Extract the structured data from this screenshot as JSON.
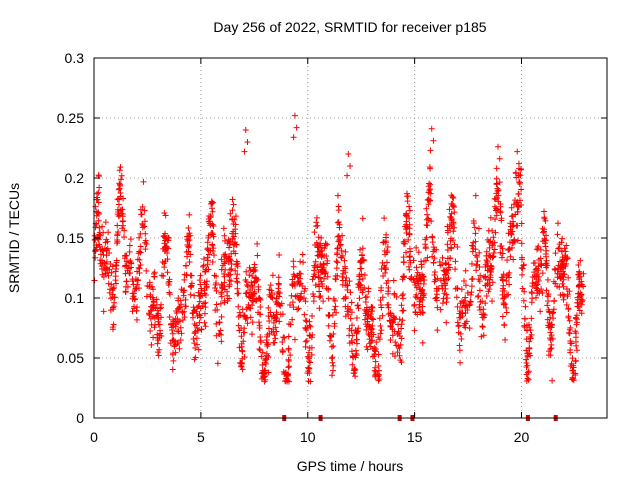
{
  "chart_data": {
    "type": "scatter",
    "title": "Day 256 of 2022, SRMTID for receiver p185",
    "xlabel": "GPS time / hours",
    "ylabel": "SRMTID / TECUs",
    "xlim": [
      0,
      24
    ],
    "ylim": [
      0,
      0.3
    ],
    "xticks": [
      0,
      5,
      10,
      15,
      20
    ],
    "xtick_labels": [
      "0",
      "5",
      "10",
      "15",
      "20"
    ],
    "yticks": [
      0,
      0.05,
      0.1,
      0.15,
      0.2,
      0.25,
      0.3
    ],
    "ytick_labels": [
      "0",
      "0.05",
      "0.1",
      "0.15",
      "0.2",
      "0.25",
      "0.3"
    ],
    "grid": true,
    "marker": "plus",
    "series_color": "#ff0000",
    "gap_markers_x": [
      8.9,
      10.6,
      14.3,
      14.9,
      20.3,
      21.6
    ],
    "x_range_data": [
      0,
      22.9
    ],
    "typical_range": [
      0.04,
      0.2
    ],
    "peaks": [
      {
        "x": 9.4,
        "y": 0.252
      },
      {
        "x": 7.1,
        "y": 0.24
      },
      {
        "x": 15.8,
        "y": 0.241
      },
      {
        "x": 18.9,
        "y": 0.226
      },
      {
        "x": 11.9,
        "y": 0.22
      },
      {
        "x": 19.8,
        "y": 0.222
      }
    ]
  }
}
